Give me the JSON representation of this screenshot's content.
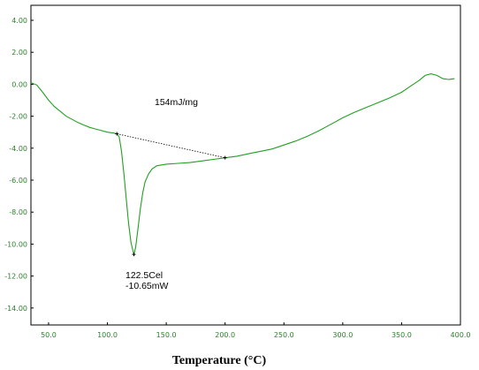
{
  "chart_data": {
    "type": "line",
    "title": "",
    "xlabel": "Temperature (°C)",
    "ylabel": "",
    "xlim": [
      35,
      400
    ],
    "ylim": [
      -15,
      5
    ],
    "grid": false,
    "x_ticks": [
      "50.0",
      "100.0",
      "150.0",
      "200.0",
      "250.0",
      "300.0",
      "350.0",
      "400.0"
    ],
    "y_ticks": [
      "4.00",
      "2.00",
      "0.00",
      "-2.00",
      "-4.00",
      "-6.00",
      "-8.00",
      "-10.00",
      "-12.00",
      "-14.00"
    ],
    "series": [
      {
        "color": "#22a022",
        "points": [
          [
            35,
            0.1
          ],
          [
            40,
            -0.05
          ],
          [
            45,
            -0.5
          ],
          [
            50,
            -1.0
          ],
          [
            55,
            -1.4
          ],
          [
            60,
            -1.7
          ],
          [
            65,
            -2.0
          ],
          [
            70,
            -2.2
          ],
          [
            75,
            -2.4
          ],
          [
            80,
            -2.55
          ],
          [
            85,
            -2.7
          ],
          [
            90,
            -2.8
          ],
          [
            95,
            -2.9
          ],
          [
            100,
            -3.0
          ],
          [
            105,
            -3.05
          ],
          [
            108,
            -3.1
          ],
          [
            110,
            -3.3
          ],
          [
            112,
            -4.2
          ],
          [
            114,
            -5.6
          ],
          [
            116,
            -7.2
          ],
          [
            118,
            -8.7
          ],
          [
            120,
            -9.9
          ],
          [
            122.5,
            -10.65
          ],
          [
            124,
            -10.2
          ],
          [
            126,
            -9.0
          ],
          [
            128,
            -7.8
          ],
          [
            130,
            -6.8
          ],
          [
            132,
            -6.1
          ],
          [
            135,
            -5.6
          ],
          [
            138,
            -5.3
          ],
          [
            142,
            -5.1
          ],
          [
            150,
            -5.0
          ],
          [
            160,
            -4.95
          ],
          [
            170,
            -4.9
          ],
          [
            180,
            -4.8
          ],
          [
            190,
            -4.7
          ],
          [
            200,
            -4.6
          ],
          [
            210,
            -4.5
          ],
          [
            220,
            -4.35
          ],
          [
            230,
            -4.2
          ],
          [
            240,
            -4.05
          ],
          [
            250,
            -3.8
          ],
          [
            260,
            -3.55
          ],
          [
            270,
            -3.25
          ],
          [
            280,
            -2.9
          ],
          [
            290,
            -2.5
          ],
          [
            300,
            -2.1
          ],
          [
            310,
            -1.75
          ],
          [
            320,
            -1.45
          ],
          [
            330,
            -1.15
          ],
          [
            340,
            -0.85
          ],
          [
            350,
            -0.5
          ],
          [
            358,
            -0.1
          ],
          [
            365,
            0.25
          ],
          [
            370,
            0.55
          ],
          [
            375,
            0.65
          ],
          [
            380,
            0.55
          ],
          [
            385,
            0.35
          ],
          [
            390,
            0.3
          ],
          [
            395,
            0.35
          ]
        ]
      }
    ],
    "baseline": {
      "x": [
        108,
        200
      ],
      "y": [
        -3.1,
        -4.6
      ],
      "color": "#000000"
    },
    "annotations": {
      "enthalpy": "154mJ/mg",
      "peak_temp": "122.5Cel",
      "peak_value": "-10.65mW"
    }
  }
}
